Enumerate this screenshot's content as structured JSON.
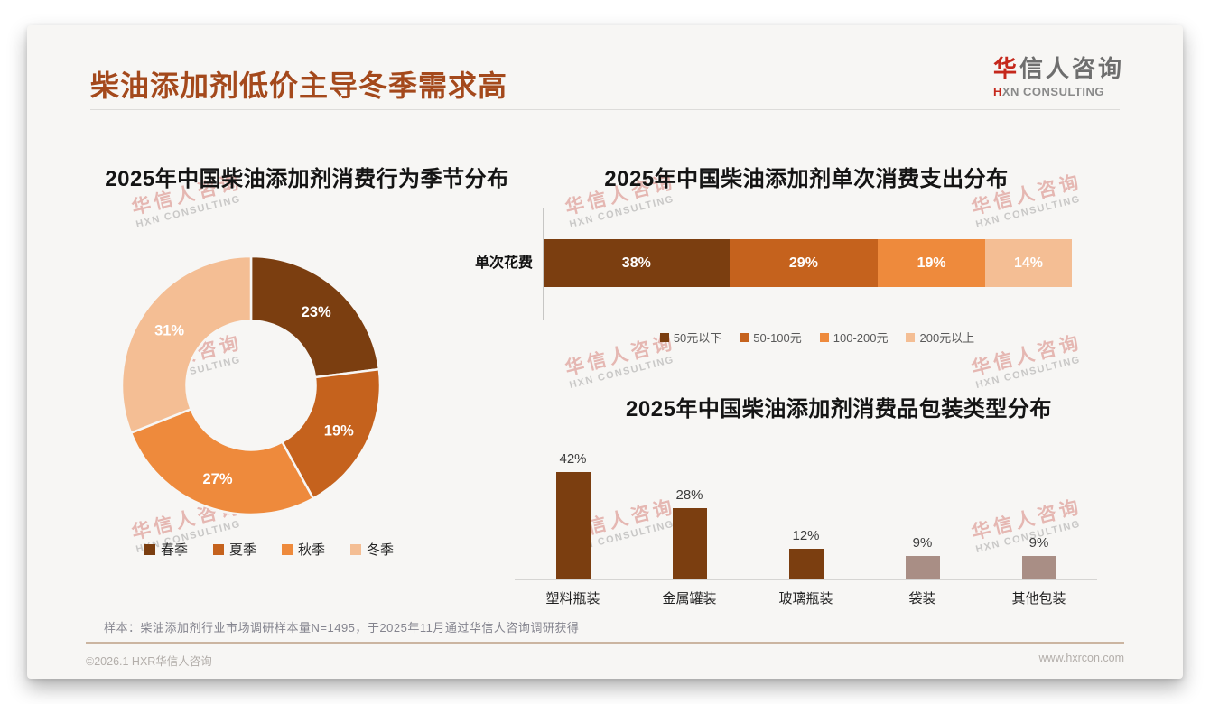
{
  "page": {
    "title": "柴油添加剂低价主导冬季需求高"
  },
  "logo": {
    "name_accent": "华",
    "name_rest": "信人咨询",
    "tagline_accent": "H",
    "tagline_rest": "XN CONSULTING"
  },
  "watermark": {
    "line1": "华信人咨询",
    "line2": "HXN CONSULTING"
  },
  "chart_data": [
    {
      "id": "season-donut",
      "type": "pie",
      "subtype": "donut",
      "title": "2025年中国柴油添加剂消费行为季节分布",
      "labels": [
        "春季",
        "夏季",
        "秋季",
        "冬季"
      ],
      "values": [
        23,
        19,
        27,
        31
      ],
      "value_labels": [
        "23%",
        "19%",
        "27%",
        "31%"
      ],
      "colors": [
        "#7B3E10",
        "#C5621D",
        "#EE8A3C",
        "#F4BE94"
      ],
      "start_angle_deg": 0,
      "donut_hole_ratio": 0.5,
      "legend_position": "bottom"
    },
    {
      "id": "spend-stacked-bar",
      "type": "bar",
      "subtype": "horizontal-stacked",
      "title": "2025年中国柴油添加剂单次消费支出分布",
      "categories": [
        "单次花费"
      ],
      "series": [
        {
          "name": "50元以下",
          "value": 38,
          "color": "#7B3E10"
        },
        {
          "name": "50-100元",
          "value": 29,
          "color": "#C5621D"
        },
        {
          "name": "100-200元",
          "value": 19,
          "color": "#EE8A3C"
        },
        {
          "name": "200元以上",
          "value": 14,
          "color": "#F4BE94"
        }
      ],
      "value_labels": [
        "38%",
        "29%",
        "19%",
        "14%"
      ],
      "xlim": [
        0,
        100
      ],
      "legend_position": "bottom"
    },
    {
      "id": "packaging-bar",
      "type": "bar",
      "subtype": "vertical",
      "title": "2025年中国柴油添加剂消费品包装类型分布",
      "categories": [
        "塑料瓶装",
        "金属罐装",
        "玻璃瓶装",
        "袋装",
        "其他包装"
      ],
      "values": [
        42,
        28,
        12,
        9,
        9
      ],
      "value_labels": [
        "42%",
        "28%",
        "12%",
        "9%",
        "9%"
      ],
      "bar_colors": [
        "#7B3E10",
        "#7B3E10",
        "#7B3E10",
        "#A98E85",
        "#A98E85"
      ],
      "ylim": [
        0,
        50
      ],
      "grid": false
    }
  ],
  "footer": {
    "note": "样本：柴油添加剂行业市场调研样本量N=1495，于2025年11月通过华信人咨询调研获得",
    "copyright": "©2026.1 HXR华信人咨询",
    "website": "www.hxrcon.com"
  },
  "colors": {
    "title_accent": "#A4491C",
    "logo_red": "#C5281C",
    "dark_brown": "#7B3E10",
    "chocolate": "#C5621D",
    "orange": "#EE8A3C",
    "peach": "#F4BE94",
    "mauve": "#A98E85"
  }
}
